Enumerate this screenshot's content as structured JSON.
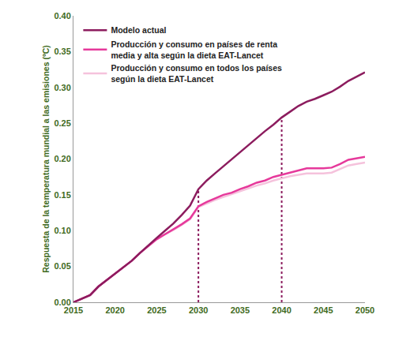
{
  "chart_data": {
    "type": "line",
    "y_label": "Respuesta de la temperatura mundial a las emisiones (ºC)",
    "x": [
      2015,
      2016,
      2017,
      2018,
      2019,
      2020,
      2021,
      2022,
      2023,
      2024,
      2025,
      2026,
      2027,
      2028,
      2029,
      2030,
      2031,
      2032,
      2033,
      2034,
      2035,
      2036,
      2037,
      2038,
      2039,
      2040,
      2041,
      2042,
      2043,
      2044,
      2045,
      2046,
      2047,
      2048,
      2049,
      2050
    ],
    "series": [
      {
        "name": "Modelo actual",
        "color": "#8c1c5e",
        "values": [
          0,
          0.005,
          0.01,
          0.022,
          0.031,
          0.04,
          0.048,
          0.058,
          0.069,
          0.08,
          0.09,
          0.1,
          0.11,
          0.122,
          0.135,
          0.158,
          0.17,
          0.18,
          0.19,
          0.2,
          0.21,
          0.219,
          0.23,
          0.239,
          0.248,
          0.258,
          0.266,
          0.274,
          0.28,
          0.284,
          0.289,
          0.294,
          0.301,
          0.309,
          0.315,
          0.321
        ]
      },
      {
        "name": "Producción y consumo en países de renta media y alta según la dieta EAT-Lancet",
        "color": "#e6399b",
        "values": [
          0,
          0.005,
          0.01,
          0.022,
          0.031,
          0.04,
          0.048,
          0.058,
          0.069,
          0.079,
          0.088,
          0.095,
          0.102,
          0.109,
          0.117,
          0.134,
          0.14,
          0.145,
          0.15,
          0.153,
          0.158,
          0.162,
          0.167,
          0.17,
          0.175,
          0.178,
          0.181,
          0.184,
          0.187,
          0.187,
          0.187,
          0.188,
          0.193,
          0.199,
          0.201,
          0.203
        ]
      },
      {
        "name": "Producción y consumo en todos los países según la dieta EAT-Lancet",
        "color": "#f5c2dc",
        "values": [
          0,
          0.005,
          0.01,
          0.022,
          0.031,
          0.04,
          0.048,
          0.058,
          0.069,
          0.079,
          0.088,
          0.095,
          0.101,
          0.108,
          0.116,
          0.133,
          0.138,
          0.143,
          0.147,
          0.151,
          0.155,
          0.159,
          0.163,
          0.166,
          0.17,
          0.173,
          0.176,
          0.178,
          0.18,
          0.18,
          0.18,
          0.181,
          0.186,
          0.191,
          0.193,
          0.195
        ]
      }
    ],
    "reference_lines": [
      {
        "x": 2030,
        "y": 0.158
      },
      {
        "x": 2040,
        "y": 0.258
      }
    ],
    "xlim": [
      2015,
      2050
    ],
    "xticks": [
      2015,
      2020,
      2025,
      2030,
      2035,
      2040,
      2045,
      2050
    ],
    "ylim": [
      0,
      0.4
    ],
    "yticks": [
      {
        "value": 0,
        "label": "0.00"
      },
      {
        "value": 0.05,
        "label": "0.05"
      },
      {
        "value": 0.1,
        "label": "0.10"
      },
      {
        "value": 0.15,
        "label": "0.15"
      },
      {
        "value": 0.2,
        "label": "0.20"
      },
      {
        "value": 0.25,
        "label": "0.25"
      },
      {
        "value": 0.3,
        "label": "0.30"
      },
      {
        "value": 0.35,
        "label": "0.35"
      },
      {
        "value": 0.4,
        "label": "0.40"
      }
    ],
    "grid": false,
    "legend": "top-left"
  }
}
